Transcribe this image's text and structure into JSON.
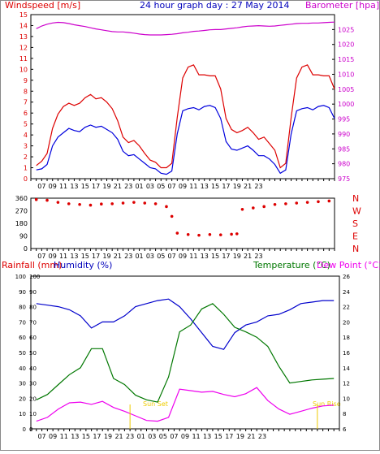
{
  "header": {
    "windspeed_label": "Windspeed [m/s]",
    "title": "24 hour graph day : 27 May 2014",
    "barometer_label": "Barometer [hpa]"
  },
  "legend2": {
    "rainfall": "Rainfall (mm)",
    "humidity": "Humidity (%)",
    "temperature": "Temperature (°C)",
    "dewpoint": "Dew Point (°C)"
  },
  "annotations": {
    "sunset": "Sun Set",
    "sunrise": "Sun Rise"
  },
  "colors": {
    "wind_avg": "#0000dd",
    "wind_gust": "#dd0000",
    "barometer": "#cc00cc",
    "direction": "#dd0000",
    "humidity": "#0000cc",
    "temperature": "#007700",
    "dewpoint": "#ee00ee",
    "rain": "#0000cc",
    "annotation": "#eecc00",
    "grid": "#000000"
  },
  "chart_data": [
    {
      "type": "line",
      "title": "24 hour graph day : 27 May 2014",
      "x_ticks": [
        "07",
        "09",
        "11",
        "13",
        "15",
        "17",
        "19",
        "21",
        "23",
        "01",
        "03",
        "05",
        "07",
        "09",
        "11",
        "13",
        "15",
        "17",
        "19",
        "21",
        "23"
      ],
      "y_left_label": "Windspeed [m/s]",
      "y_left_ticks": [
        0,
        1,
        2,
        3,
        4,
        5,
        6,
        7,
        8,
        9,
        10,
        11,
        12,
        13,
        14,
        15
      ],
      "ylim_left": [
        0,
        15
      ],
      "y_right_label": "Barometer [hpa]",
      "y_right_ticks": [
        975,
        980,
        985,
        990,
        995,
        1000,
        1005,
        1010,
        1015,
        1020,
        1025
      ],
      "ylim_right": [
        975,
        1030
      ],
      "x_hours": [
        6,
        7,
        8,
        9,
        10,
        11,
        12,
        13,
        14,
        15,
        16,
        17,
        18,
        19,
        20,
        21,
        22,
        23,
        24,
        25,
        26,
        27,
        28,
        29,
        30,
        31,
        32,
        33,
        34,
        35,
        36,
        37,
        38,
        39,
        40,
        41,
        42,
        43,
        44,
        45,
        46,
        47,
        48,
        49,
        50,
        51,
        52,
        53,
        54,
        55,
        56,
        57,
        58,
        59,
        60,
        61
      ],
      "series": [
        {
          "name": "Windspeed gust",
          "values": [
            1.2,
            1.6,
            2.3,
            4.6,
            5.9,
            6.6,
            6.9,
            6.7,
            6.9,
            7.4,
            7.7,
            7.3,
            7.4,
            7.0,
            6.4,
            5.3,
            3.8,
            3.3,
            3.5,
            3.0,
            2.3,
            1.7,
            1.5,
            1.0,
            1.0,
            1.4,
            5.6,
            9.2,
            10.2,
            10.4,
            9.5,
            9.5,
            9.4,
            9.4,
            8.2,
            5.5,
            4.5,
            4.2,
            4.4,
            4.7,
            4.2,
            3.6,
            3.8,
            3.2,
            2.6,
            1.0,
            1.4,
            5.6,
            9.2,
            10.2,
            10.4,
            9.5,
            9.5,
            9.4,
            9.4,
            8.2
          ]
        },
        {
          "name": "Windspeed average",
          "values": [
            0.8,
            0.9,
            1.3,
            3.0,
            3.8,
            4.2,
            4.6,
            4.4,
            4.3,
            4.7,
            4.9,
            4.7,
            4.8,
            4.5,
            4.2,
            3.6,
            2.5,
            2.1,
            2.2,
            1.8,
            1.4,
            1.0,
            0.9,
            0.5,
            0.4,
            0.7,
            4.1,
            6.2,
            6.4,
            6.5,
            6.3,
            6.6,
            6.7,
            6.5,
            5.5,
            3.4,
            2.7,
            2.6,
            2.8,
            3.0,
            2.6,
            2.1,
            2.1,
            1.8,
            1.3,
            0.5,
            0.8,
            4.1,
            6.2,
            6.4,
            6.5,
            6.3,
            6.6,
            6.7,
            6.5,
            5.5
          ]
        },
        {
          "name": "Barometer",
          "values": [
            1025.3,
            1026.2,
            1026.8,
            1027.2,
            1027.4,
            1027.3,
            1027.0,
            1026.6,
            1026.3,
            1026.0,
            1025.6,
            1025.2,
            1024.9,
            1024.6,
            1024.3,
            1024.2,
            1024.2,
            1024.0,
            1023.8,
            1023.5,
            1023.3,
            1023.2,
            1023.2,
            1023.2,
            1023.3,
            1023.4,
            1023.6,
            1023.9,
            1024.1,
            1024.4,
            1024.5,
            1024.7,
            1024.9,
            1025.0,
            1025.0,
            1025.2,
            1025.4,
            1025.6,
            1025.9,
            1026.1,
            1026.2,
            1026.3,
            1026.2,
            1026.1,
            1026.2,
            1026.4,
            1026.6,
            1026.8,
            1027.0,
            1027.1,
            1027.1,
            1027.2,
            1027.2,
            1027.3,
            1027.4,
            1027.5
          ]
        }
      ]
    },
    {
      "type": "scatter",
      "y_left_ticks": [
        0,
        90,
        180,
        270,
        360
      ],
      "ylim": [
        0,
        360
      ],
      "y_right_ticks": [
        "N",
        "W",
        "S",
        "E",
        "N"
      ],
      "series": [
        {
          "name": "Wind direction",
          "x_hours": [
            6,
            8,
            10,
            12,
            14,
            16,
            18,
            20,
            22,
            24,
            26,
            28,
            30,
            31,
            32,
            34,
            36,
            38,
            40,
            42,
            43,
            44,
            46,
            48,
            50,
            52,
            54,
            56,
            58,
            60
          ],
          "values": [
            350,
            345,
            330,
            320,
            315,
            310,
            318,
            320,
            325,
            330,
            325,
            320,
            300,
            230,
            110,
            100,
            95,
            100,
            98,
            102,
            105,
            280,
            290,
            300,
            315,
            320,
            325,
            330,
            335,
            340
          ]
        }
      ]
    },
    {
      "type": "line",
      "x_ticks": [
        "07",
        "09",
        "11",
        "13",
        "15",
        "17",
        "19",
        "21",
        "23",
        "01",
        "03",
        "05",
        "07",
        "09",
        "11",
        "13",
        "15",
        "17",
        "19",
        "21",
        "23"
      ],
      "y_left_ticks": [
        0,
        10,
        20,
        30,
        40,
        50,
        60,
        70,
        80,
        90,
        100
      ],
      "ylim_left": [
        0,
        100
      ],
      "y_right_ticks": [
        6,
        8,
        10,
        12,
        14,
        16,
        18,
        20,
        22,
        24,
        26
      ],
      "ylim_right": [
        6,
        26
      ],
      "x_hours": [
        6,
        8,
        10,
        12,
        14,
        16,
        18,
        20,
        22,
        24,
        26,
        28,
        30,
        32,
        34,
        36,
        38,
        40,
        42,
        44,
        46,
        48,
        50,
        52,
        54,
        56,
        58,
        60
      ],
      "series": [
        {
          "name": "Humidity",
          "values": [
            82,
            81,
            80,
            78,
            74,
            66,
            70,
            70,
            74,
            80,
            82,
            84,
            85,
            80,
            72,
            63,
            54,
            52,
            63,
            68,
            70,
            74,
            75,
            78,
            82,
            83,
            84,
            84
          ]
        },
        {
          "name": "Temperature",
          "values": [
            9.8,
            10.5,
            11.8,
            13.1,
            14.0,
            16.5,
            16.5,
            12.6,
            11.8,
            10.4,
            9.8,
            9.5,
            12.8,
            18.7,
            19.6,
            21.7,
            22.4,
            21.0,
            19.3,
            18.7,
            18.0,
            16.8,
            14.2,
            12.0,
            12.2,
            12.4,
            12.5,
            12.6
          ]
        },
        {
          "name": "Dew Point",
          "values": [
            7.0,
            7.5,
            8.6,
            9.4,
            9.5,
            9.2,
            9.6,
            8.8,
            8.3,
            7.7,
            7.1,
            7.0,
            7.5,
            11.2,
            11.0,
            10.8,
            10.9,
            10.5,
            10.2,
            10.6,
            11.4,
            9.7,
            8.6,
            7.9,
            8.3,
            8.7,
            9.0,
            9.1
          ]
        },
        {
          "name": "Rainfall",
          "values": [
            0,
            0,
            0,
            0,
            0,
            0,
            0,
            0,
            0,
            0,
            0,
            0,
            0,
            0,
            0,
            0,
            0,
            0,
            0,
            0,
            0,
            0,
            0,
            0,
            0,
            0,
            0,
            0
          ]
        }
      ]
    }
  ]
}
